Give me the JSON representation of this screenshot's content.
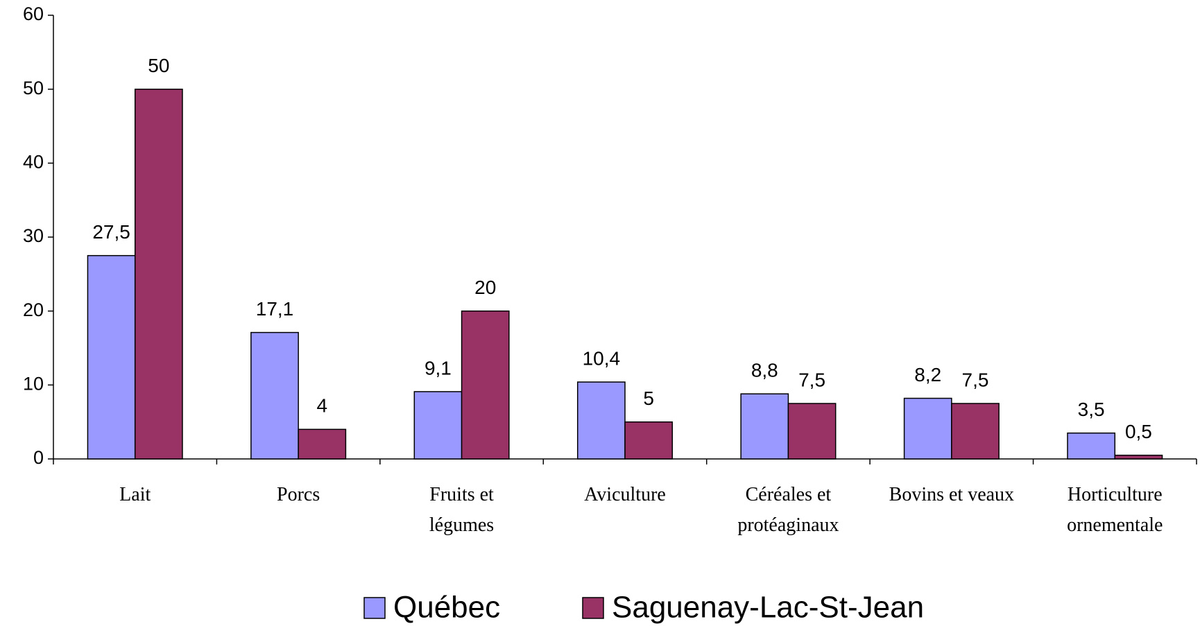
{
  "chart_data": {
    "type": "bar",
    "categories": [
      "Lait",
      "Porcs",
      "Fruits et\nlégumes",
      "Aviculture",
      "Céréales et\nprotéaginaux",
      "Bovins et veaux",
      "Horticulture\nornementale"
    ],
    "series": [
      {
        "name": "Québec",
        "color": "#9999ff",
        "values": [
          27.5,
          17.1,
          9.1,
          10.4,
          8.8,
          8.2,
          3.5
        ],
        "value_labels": [
          "27,5",
          "17,1",
          "9,1",
          "10,4",
          "8,8",
          "8,2",
          "3,5"
        ]
      },
      {
        "name": "Saguenay-Lac-St-Jean",
        "color": "#993366",
        "values": [
          50,
          4,
          20,
          5,
          7.5,
          7.5,
          0.5
        ],
        "value_labels": [
          "50",
          "4",
          "20",
          "5",
          "7,5",
          "7,5",
          "0,5"
        ]
      }
    ],
    "ylim": [
      0,
      60
    ],
    "yticks": [
      0,
      10,
      20,
      30,
      40,
      50,
      60
    ],
    "grid": false,
    "legend": "bottom"
  }
}
